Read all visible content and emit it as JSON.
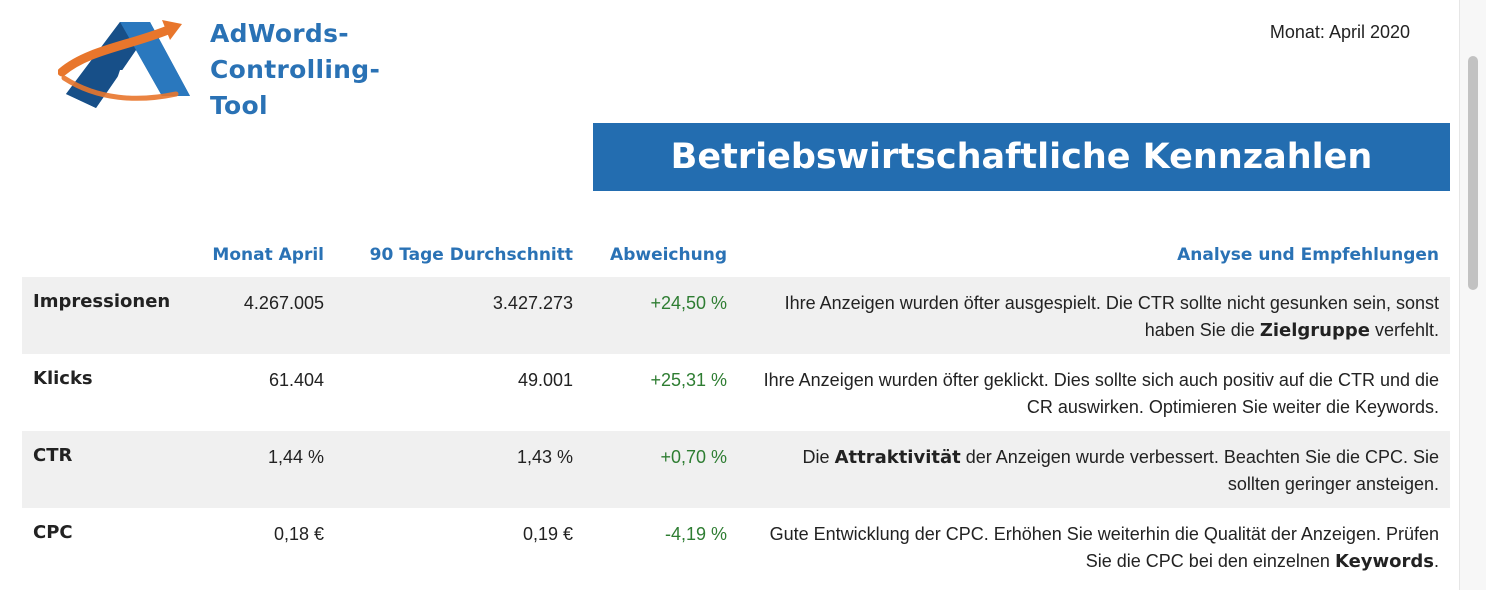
{
  "brand": {
    "line1": "AdWords-",
    "line2": "Controlling-",
    "line3": "Tool",
    "colors": {
      "blue": "#2a72b5",
      "orange": "#e8762c"
    }
  },
  "month_label": "Monat: April 2020",
  "title": "Betriebswirtschaftliche Kennzahlen",
  "columns": {
    "label": "",
    "month": "Monat April",
    "avg": "90 Tage Durchschnitt",
    "deviation": "Abweichung",
    "analysis": "Analyse und Empfehlungen"
  },
  "rows": [
    {
      "label": "Impressionen",
      "month": "4.267.005",
      "avg": "3.427.273",
      "deviation": "+24,50 %",
      "analysis": {
        "before": "Ihre Anzeigen wurden öfter ausgespielt. Die CTR sollte nicht gesunken sein, sonst haben Sie die ",
        "bold": "Zielgruppe",
        "after": " verfehlt."
      }
    },
    {
      "label": "Klicks",
      "month": "61.404",
      "avg": "49.001",
      "deviation": "+25,31 %",
      "analysis": {
        "before": "Ihre Anzeigen wurden öfter geklickt. Dies sollte sich auch positiv auf die CTR und die CR auswirken. Optimieren Sie weiter die Keywords.",
        "bold": "",
        "after": ""
      }
    },
    {
      "label": "CTR",
      "month": "1,44 %",
      "avg": "1,43 %",
      "deviation": "+0,70 %",
      "analysis": {
        "before": "Die ",
        "bold": "Attraktivität",
        "after": " der Anzeigen wurde verbessert. Beachten Sie die CPC. Sie sollten geringer ansteigen."
      }
    },
    {
      "label": "CPC",
      "month": "0,18 €",
      "avg": "0,19 €",
      "deviation": "-4,19 %",
      "analysis": {
        "before": "Gute Entwicklung der CPC. Erhöhen Sie weiterhin die Qualität der Anzeigen. Prüfen Sie die CPC bei den einzelnen ",
        "bold": "Keywords",
        "after": "."
      }
    }
  ],
  "colors": {
    "title_bar": "#236db0",
    "header_text": "#2a72b5",
    "deviation_text": "#2e7d32",
    "row_shade": "#f0f0f0"
  }
}
